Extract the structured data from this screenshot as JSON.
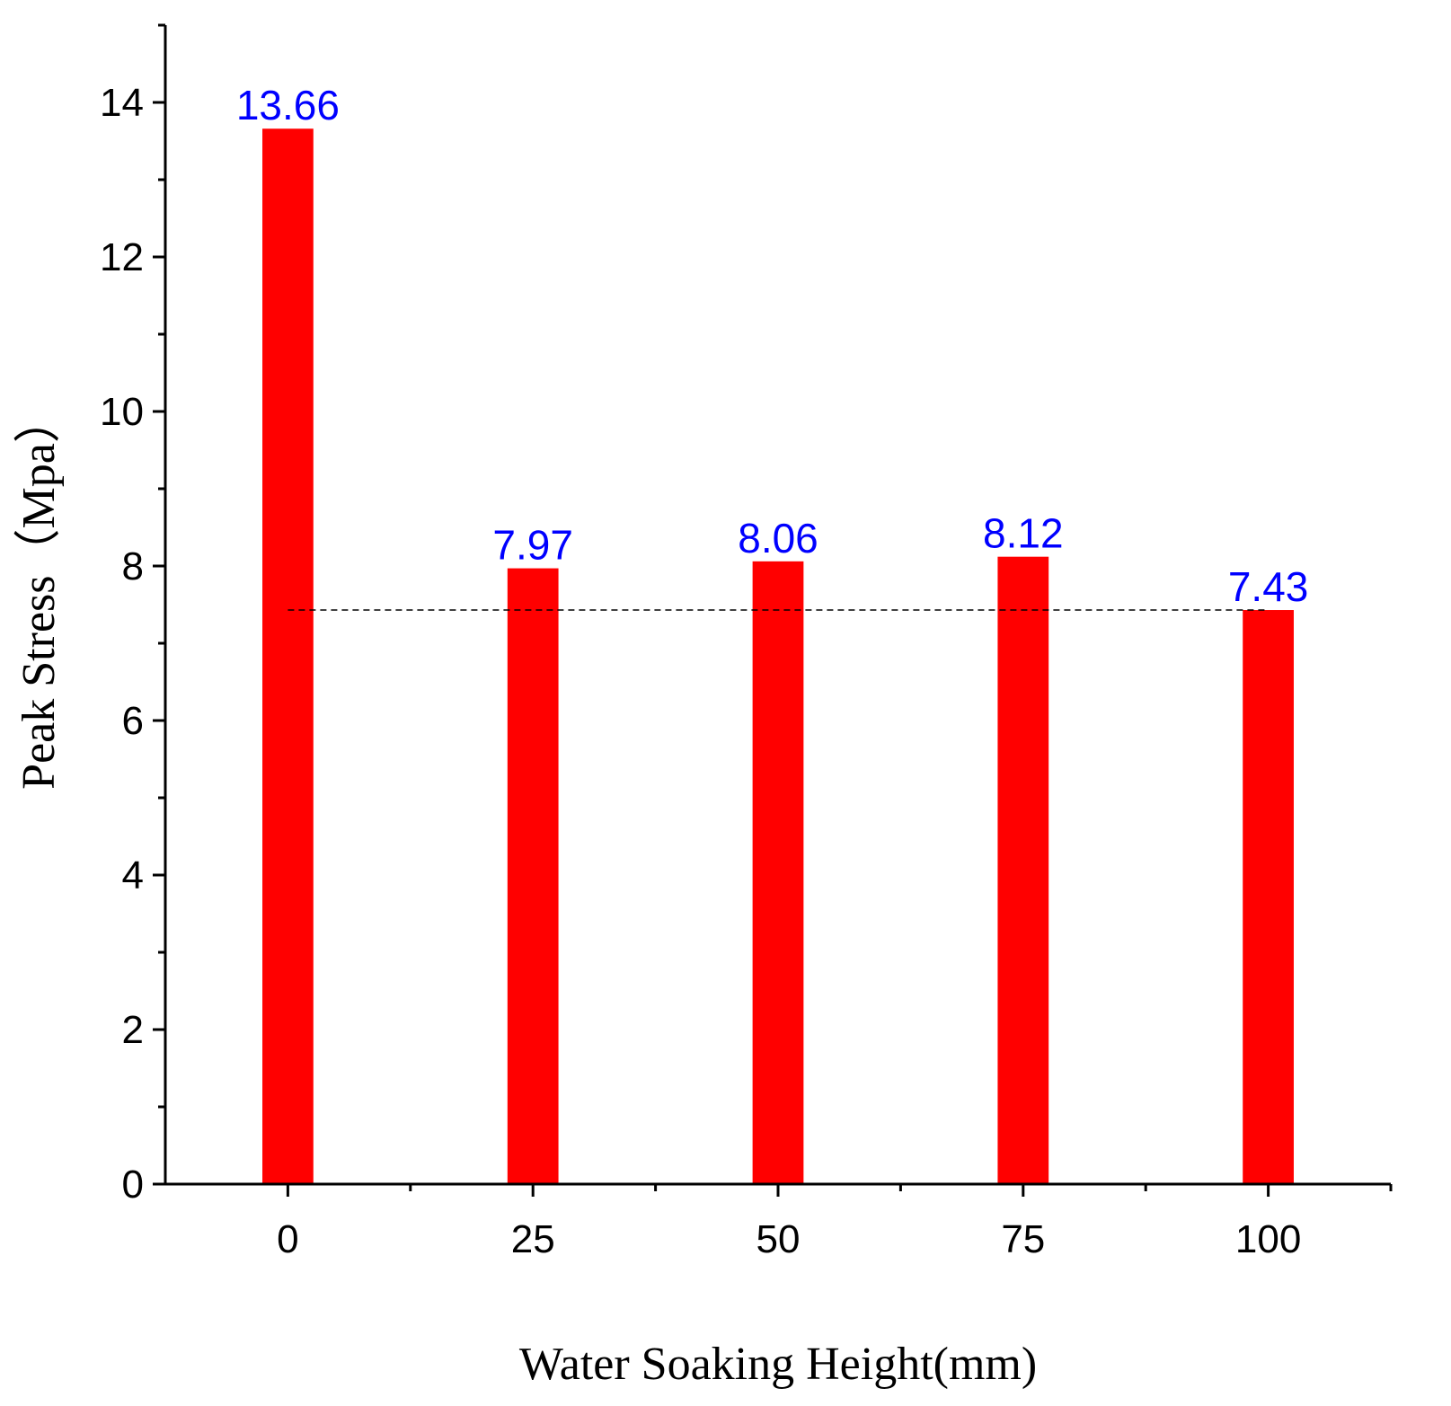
{
  "chart_data": {
    "type": "bar",
    "title": "",
    "xlabel": "Water Soaking Height(mm)",
    "ylabel": "Peak Stress（Mpa）",
    "categories": [
      "0",
      "25",
      "50",
      "75",
      "100"
    ],
    "x": [
      0,
      25,
      50,
      75,
      100
    ],
    "values": [
      13.66,
      7.97,
      8.06,
      8.12,
      7.43
    ],
    "data_labels": [
      "13.66",
      "7.97",
      "8.06",
      "8.12",
      "7.43"
    ],
    "xlim": [
      -12.5,
      112.5
    ],
    "ylim": [
      0,
      15
    ],
    "y_ticks": [
      0,
      2,
      4,
      6,
      8,
      10,
      12,
      14
    ],
    "y_tick_labels": [
      "0",
      "2",
      "4",
      "6",
      "8",
      "10",
      "12",
      "14"
    ],
    "x_tick_labels": [
      "0",
      "25",
      "50",
      "75",
      "100"
    ],
    "x_minor_ticks": [
      12.5,
      37.5,
      62.5,
      87.5
    ],
    "y_minor_ticks": [
      1,
      3,
      5,
      7,
      9,
      11,
      13,
      15
    ],
    "bar_width": 5.2,
    "reference_line": {
      "y": 7.43,
      "style": "dashed"
    },
    "grid": false,
    "colors": {
      "bar": "#ff0000",
      "label": "#0000ff",
      "axis": "#000000",
      "reference": "#000000"
    }
  }
}
